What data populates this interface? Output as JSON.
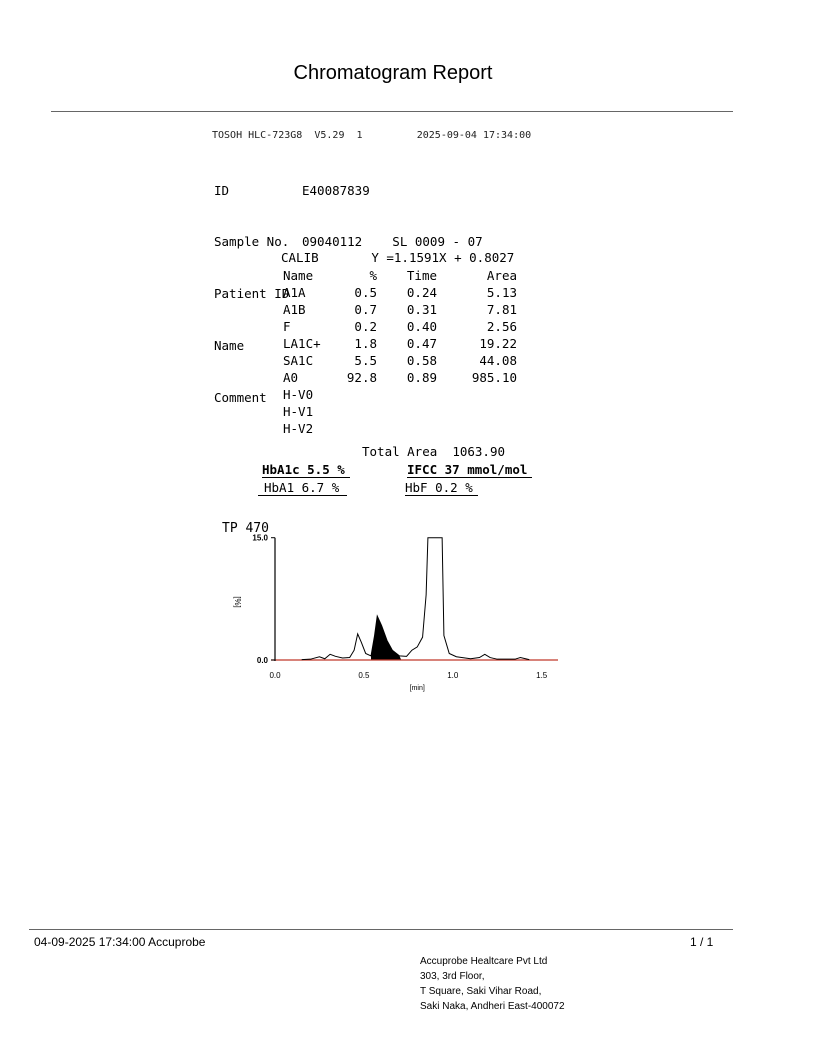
{
  "title": "Chromatogram Report",
  "instrument": {
    "model": "TOSOH HLC-723G8",
    "version": "V5.29",
    "channel": "1",
    "datetime": "2025-09-04 17:34:00"
  },
  "info": [
    {
      "label": "ID",
      "value": "E40087839"
    },
    {
      "label": "Sample No.",
      "value": "09040112    SL 0009 - 07"
    },
    {
      "label": "Patient ID",
      "value": ""
    },
    {
      "label": "Name",
      "value": ""
    },
    {
      "label": "Comment",
      "value": ""
    }
  ],
  "calib": {
    "label": "CALIB",
    "equation": "Y =1.1591X + 0.8027"
  },
  "table": {
    "headers": [
      "Name",
      "%",
      "Time",
      "Area"
    ],
    "rows": [
      [
        "A1A",
        "0.5",
        "0.24",
        "5.13"
      ],
      [
        "A1B",
        "0.7",
        "0.31",
        "7.81"
      ],
      [
        "F",
        "0.2",
        "0.40",
        "2.56"
      ],
      [
        "LA1C+",
        "1.8",
        "0.47",
        "19.22"
      ],
      [
        "SA1C",
        "5.5",
        "0.58",
        "44.08"
      ],
      [
        "A0",
        "92.8",
        "0.89",
        "985.10"
      ],
      [
        "H-V0",
        "",
        "",
        ""
      ],
      [
        "H-V1",
        "",
        "",
        ""
      ],
      [
        "H-V2",
        "",
        "",
        ""
      ]
    ],
    "total_label": "Total Area",
    "total_value": "1063.90"
  },
  "summary": {
    "hba1c": "HbA1c 5.5 %",
    "ifcc": "IFCC 37 mmol/mol",
    "hba1": "HbA1 6.7 %",
    "hbf": "HbF 0.2 %"
  },
  "chart_data": {
    "type": "line",
    "label": "TP  470",
    "xlabel": "[min]",
    "ylabel": "[%]",
    "xlim": [
      0,
      1.6
    ],
    "ylim": [
      0,
      15
    ],
    "xticks": [
      "0.0",
      "0.5",
      "1.0",
      "1.5"
    ],
    "yticks": [
      "0.0",
      "15.0"
    ],
    "trace": [
      [
        0.15,
        0.05
      ],
      [
        0.2,
        0.1
      ],
      [
        0.25,
        0.4
      ],
      [
        0.28,
        0.15
      ],
      [
        0.31,
        0.7
      ],
      [
        0.34,
        0.45
      ],
      [
        0.38,
        0.25
      ],
      [
        0.42,
        0.3
      ],
      [
        0.445,
        1.2
      ],
      [
        0.465,
        3.2
      ],
      [
        0.485,
        2.2
      ],
      [
        0.51,
        0.8
      ],
      [
        0.54,
        0.5
      ],
      [
        0.56,
        3.0
      ],
      [
        0.575,
        5.4
      ],
      [
        0.6,
        4.2
      ],
      [
        0.63,
        2.4
      ],
      [
        0.66,
        1.2
      ],
      [
        0.7,
        0.5
      ],
      [
        0.74,
        0.45
      ],
      [
        0.77,
        1.2
      ],
      [
        0.8,
        1.6
      ],
      [
        0.83,
        2.8
      ],
      [
        0.85,
        8
      ],
      [
        0.86,
        15.5
      ],
      [
        0.94,
        15.5
      ],
      [
        0.95,
        3
      ],
      [
        0.98,
        0.8
      ],
      [
        1.02,
        0.4
      ],
      [
        1.1,
        0.15
      ],
      [
        1.15,
        0.3
      ],
      [
        1.18,
        0.7
      ],
      [
        1.21,
        0.3
      ],
      [
        1.25,
        0.1
      ],
      [
        1.35,
        0.1
      ],
      [
        1.38,
        0.3
      ],
      [
        1.43,
        0.05
      ]
    ],
    "shaded_range": [
      0.54,
      0.71
    ],
    "baseline_color": "#c0392b",
    "line_color": "#000000"
  },
  "footer": {
    "left": "04-09-2025 17:34:00  Accuprobe",
    "page": "1 / 1",
    "address": [
      "Accuprobe Healtcare Pvt Ltd",
      "303, 3rd Floor,",
      "T Square, Saki Vihar Road,",
      "Saki Naka, Andheri East-400072"
    ]
  }
}
